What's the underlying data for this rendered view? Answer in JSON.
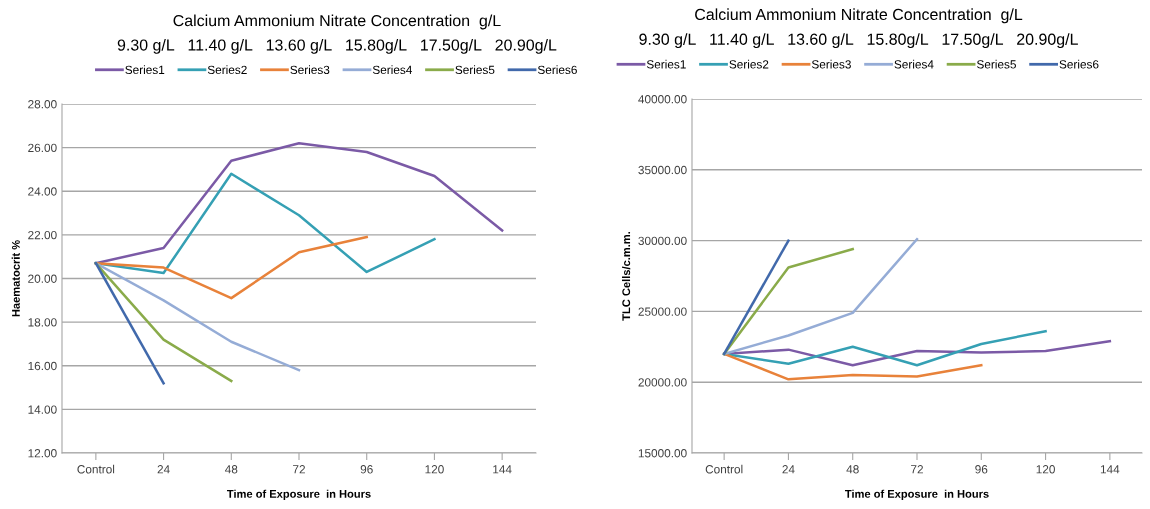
{
  "chart_data": [
    {
      "type": "line",
      "title": "Calcium Ammonium Nitrate Concentration  g/L",
      "subtitle": "9.30 g/L   11.40 g/L   13.60 g/L   15.80g/L   17.50g/L   20.90g/L",
      "xlabel": "Time of Exposure  in Hours",
      "ylabel": "Haematocrit %",
      "categories": [
        "Control",
        "24",
        "48",
        "72",
        "96",
        "120",
        "144"
      ],
      "ylim": [
        12,
        28
      ],
      "yticks": [
        {
          "value": 12,
          "label": "12.00"
        },
        {
          "value": 14,
          "label": "14.00"
        },
        {
          "value": 16,
          "label": "16.00"
        },
        {
          "value": 18,
          "label": "18.00"
        },
        {
          "value": 20,
          "label": "20.00"
        },
        {
          "value": 22,
          "label": "22.00"
        },
        {
          "value": 24,
          "label": "24.00"
        },
        {
          "value": 26,
          "label": "26.00"
        },
        {
          "value": 28,
          "label": "28.00"
        }
      ],
      "grid": "y",
      "legend": "top",
      "marker": "none",
      "line_style": "solid",
      "series": [
        {
          "name": "Series1",
          "color": "#7b5aa6",
          "values": [
            20.7,
            21.4,
            25.4,
            26.2,
            25.8,
            24.7,
            22.2
          ]
        },
        {
          "name": "Series2",
          "color": "#35a0b4",
          "values": [
            20.7,
            20.25,
            24.8,
            22.9,
            20.3,
            21.8,
            null
          ]
        },
        {
          "name": "Series3",
          "color": "#e8823a",
          "values": [
            20.7,
            20.5,
            19.1,
            21.2,
            21.9,
            null,
            null
          ]
        },
        {
          "name": "Series4",
          "color": "#95acd6",
          "values": [
            20.7,
            19.0,
            17.1,
            15.8,
            null,
            null,
            null
          ]
        },
        {
          "name": "Series5",
          "color": "#8aab4a",
          "values": [
            20.7,
            17.2,
            15.3,
            null,
            null,
            null,
            null
          ]
        },
        {
          "name": "Series6",
          "color": "#4169ab",
          "values": [
            20.7,
            15.2,
            null,
            null,
            null,
            null,
            null
          ]
        }
      ]
    },
    {
      "type": "line",
      "title": "Calcium Ammonium Nitrate Concentration  g/L",
      "subtitle": "9.30 g/L   11.40 g/L   13.60 g/L   15.80g/L   17.50g/L   20.90g/L",
      "xlabel": "Time of Exposure  in Hours",
      "ylabel": "TLC Cells/c.m.m.",
      "categories": [
        "Control",
        "24",
        "48",
        "72",
        "96",
        "120",
        "144"
      ],
      "ylim": [
        15000,
        40000
      ],
      "yticks": [
        {
          "value": 15000,
          "label": "15000.00"
        },
        {
          "value": 20000,
          "label": "20000.00"
        },
        {
          "value": 25000,
          "label": "25000.00"
        },
        {
          "value": 30000,
          "label": "30000.00"
        },
        {
          "value": 35000,
          "label": "35000.00"
        },
        {
          "value": 40000,
          "label": "40000.00"
        }
      ],
      "grid": "y",
      "legend": "top",
      "marker": "none",
      "line_style": "solid",
      "series": [
        {
          "name": "Series1",
          "color": "#7b5aa6",
          "values": [
            22000,
            22300,
            21200,
            22200,
            22100,
            22200,
            22900
          ]
        },
        {
          "name": "Series2",
          "color": "#35a0b4",
          "values": [
            22000,
            21300,
            22500,
            21200,
            22700,
            23600,
            null
          ]
        },
        {
          "name": "Series3",
          "color": "#e8823a",
          "values": [
            22000,
            20200,
            20500,
            20400,
            21200,
            null,
            null
          ]
        },
        {
          "name": "Series4",
          "color": "#95acd6",
          "values": [
            22000,
            23300,
            24900,
            30100,
            null,
            null,
            null
          ]
        },
        {
          "name": "Series5",
          "color": "#8aab4a",
          "values": [
            22000,
            28100,
            29400,
            null,
            null,
            null,
            null
          ]
        },
        {
          "name": "Series6",
          "color": "#4169ab",
          "values": [
            22000,
            30000,
            null,
            null,
            null,
            null,
            null
          ]
        }
      ]
    }
  ]
}
